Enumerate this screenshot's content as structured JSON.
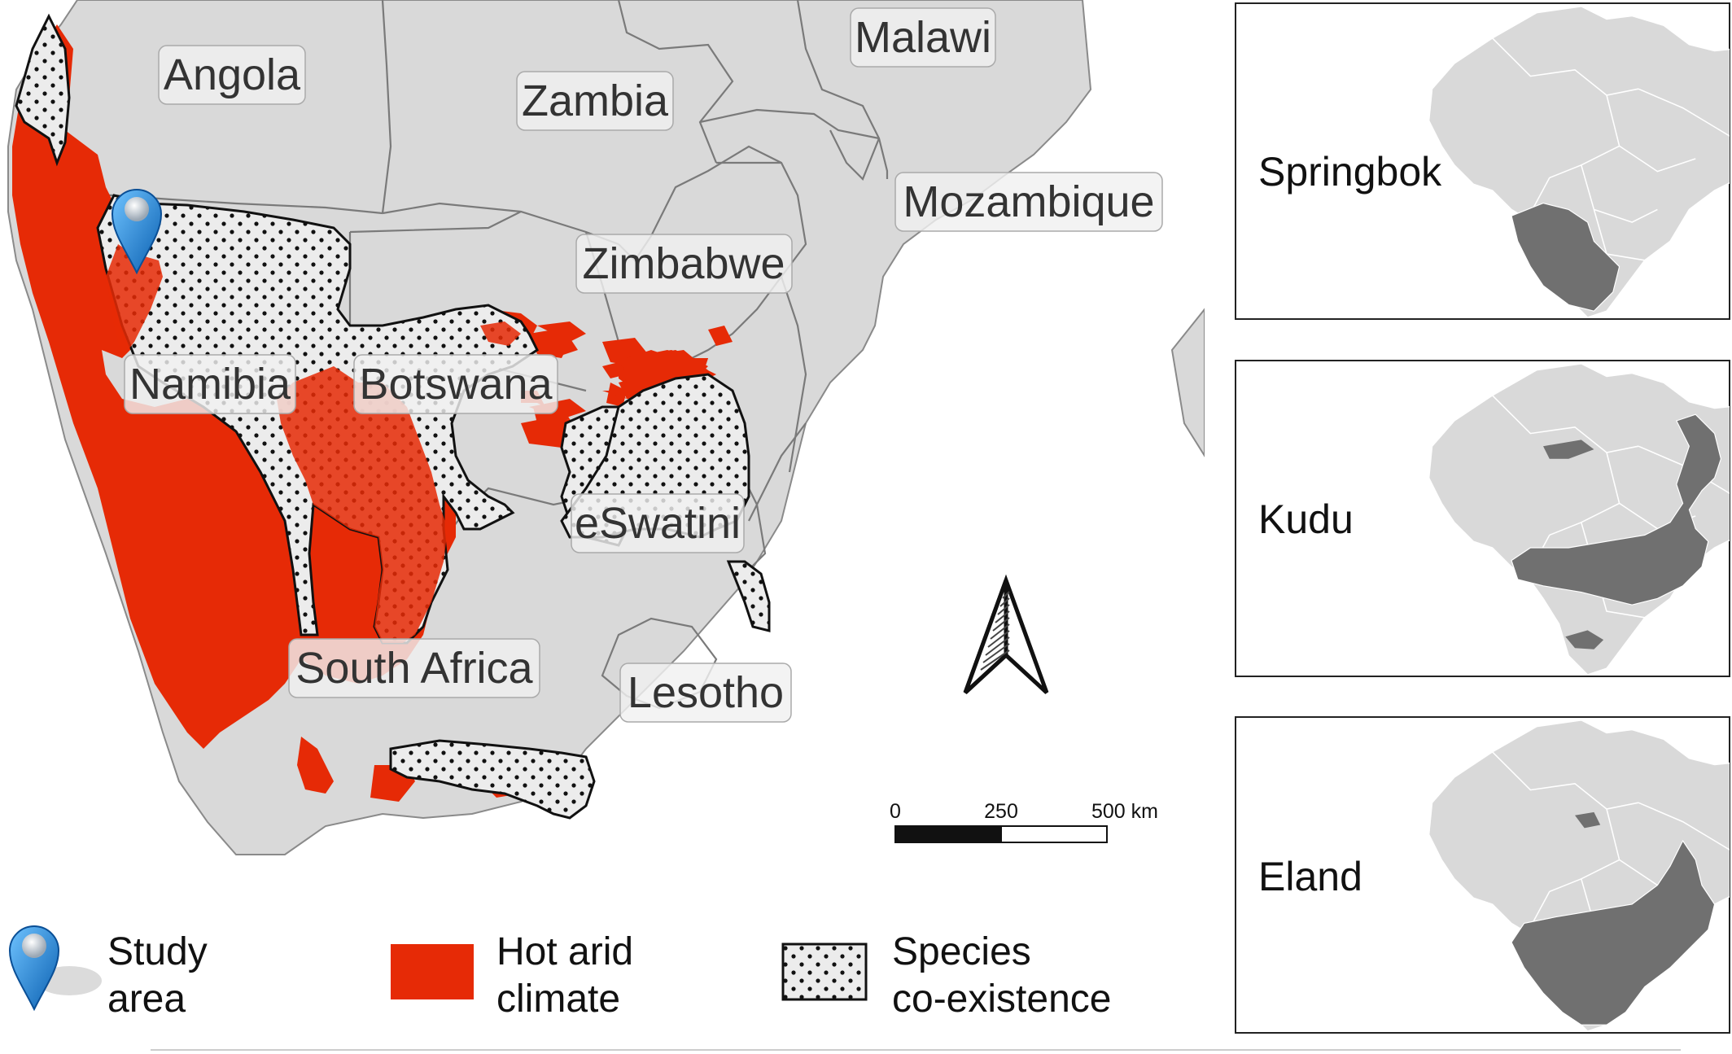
{
  "map": {
    "countries": [
      {
        "id": "angola",
        "name": "Angola"
      },
      {
        "id": "zambia",
        "name": "Zambia"
      },
      {
        "id": "malawi",
        "name": "Malawi"
      },
      {
        "id": "mozambique",
        "name": "Mozambique"
      },
      {
        "id": "zimbabwe",
        "name": "Zimbabwe"
      },
      {
        "id": "namibia",
        "name": "Namibia"
      },
      {
        "id": "botswana",
        "name": "Botswana"
      },
      {
        "id": "eswatini",
        "name": "eSwatini"
      },
      {
        "id": "south-africa",
        "name": "South Africa"
      },
      {
        "id": "lesotho",
        "name": "Lesotho"
      }
    ],
    "colors": {
      "land": "#d9d9d9",
      "border": "#7a7a7a",
      "hot_arid": "#e62a06",
      "coexistence_fill": "#ececec",
      "range_dark": "#707070"
    },
    "north_arrow_icon": "north-arrow-icon",
    "scale_bar": {
      "labels": [
        "0",
        "250",
        "500 km"
      ]
    }
  },
  "legend": {
    "study_area": {
      "line1": "Study",
      "line2": "area",
      "icon": "map-pin-icon"
    },
    "hot_arid": {
      "line1": "Hot arid",
      "line2": "climate"
    },
    "coexistence": {
      "line1": "Species",
      "line2": "co-existence"
    }
  },
  "insets": [
    {
      "id": "springbok",
      "title": "Springbok"
    },
    {
      "id": "kudu",
      "title": "Kudu"
    },
    {
      "id": "eland",
      "title": "Eland"
    }
  ]
}
